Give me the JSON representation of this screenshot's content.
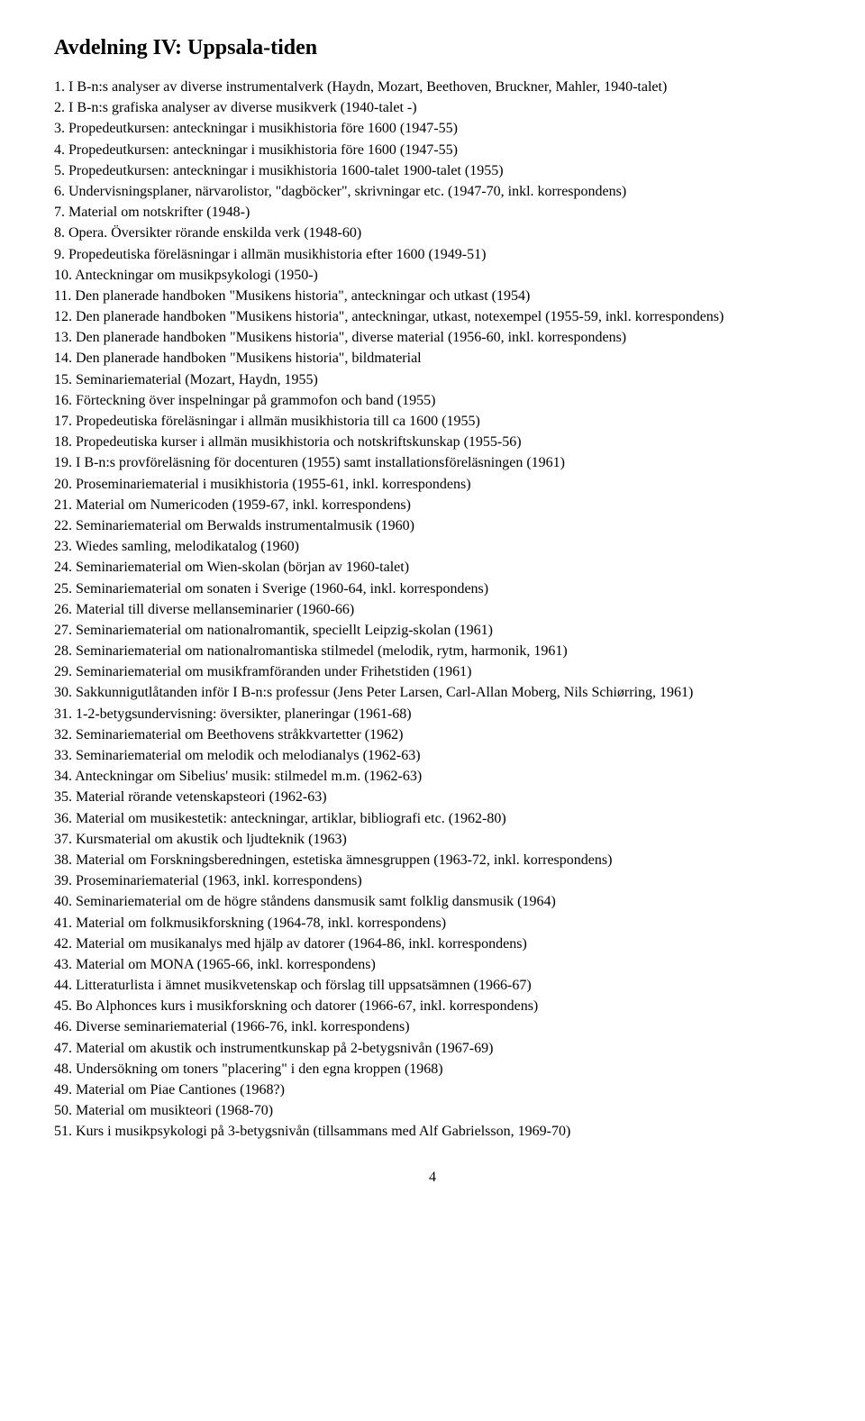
{
  "title": "Avdelning IV: Uppsala-tiden",
  "page_number": "4",
  "items": [
    {
      "num": "1.",
      "text": "I B-n:s analyser av diverse instrumentalverk (Haydn, Mozart, Beethoven, Bruckner, Mahler, 1940-talet)"
    },
    {
      "num": "2.",
      "text": "I B-n:s grafiska analyser av diverse musikverk (1940-talet -)"
    },
    {
      "num": "3.",
      "text": "Propedeutkursen: anteckningar i musikhistoria före 1600 (1947-55)"
    },
    {
      "num": "4.",
      "text": "Propedeutkursen: anteckningar i musikhistoria före 1600 (1947-55)"
    },
    {
      "num": "5.",
      "text": "Propedeutkursen: anteckningar i musikhistoria 1600-talet 1900-talet (1955)"
    },
    {
      "num": "6.",
      "text": "Undervisningsplaner, närvarolistor, \"dagböcker\", skrivningar etc. (1947-70, inkl. korrespondens)"
    },
    {
      "num": "7.",
      "text": "Material om notskrifter (1948-)"
    },
    {
      "num": "8.",
      "text": "Opera. Översikter rörande enskilda verk (1948-60)"
    },
    {
      "num": "9.",
      "text": "Propedeutiska föreläsningar i allmän musikhistoria efter 1600 (1949-51)"
    },
    {
      "num": "10.",
      "text": "Anteckningar om musikpsykologi (1950-)"
    },
    {
      "num": "11.",
      "text": "Den planerade handboken \"Musikens historia\", anteckningar och utkast (1954)"
    },
    {
      "num": "12.",
      "text": "Den planerade handboken \"Musikens historia\", anteckningar, utkast, notexempel (1955-59, inkl. korrespondens)"
    },
    {
      "num": "13.",
      "text": "Den planerade handboken \"Musikens historia\", diverse material (1956-60, inkl. korrespondens)"
    },
    {
      "num": "14.",
      "text": "Den planerade handboken \"Musikens historia\", bildmaterial"
    },
    {
      "num": "15.",
      "text": "Seminariematerial (Mozart, Haydn, 1955)"
    },
    {
      "num": "16.",
      "text": "Förteckning över inspelningar på grammofon och band (1955)"
    },
    {
      "num": "17.",
      "text": "Propedeutiska föreläsningar i allmän musikhistoria till ca 1600 (1955)"
    },
    {
      "num": "18.",
      "text": "Propedeutiska kurser i allmän musikhistoria och notskriftskunskap (1955-56)"
    },
    {
      "num": "19.",
      "text": "I B-n:s provföreläsning för docenturen (1955) samt installationsföreläsningen (1961)"
    },
    {
      "num": "20.",
      "text": "Proseminariematerial i musikhistoria (1955-61, inkl. korrespondens)"
    },
    {
      "num": "21.",
      "text": "Material om Numericoden (1959-67, inkl. korrespondens)"
    },
    {
      "num": "22.",
      "text": "Seminariematerial om Berwalds instrumentalmusik (1960)"
    },
    {
      "num": "23.",
      "text": "Wiedes samling, melodikatalog (1960)"
    },
    {
      "num": "24.",
      "text": "Seminariematerial om Wien-skolan (början av 1960-talet)"
    },
    {
      "num": "25.",
      "text": "Seminariematerial om sonaten i Sverige (1960-64, inkl. korrespondens)"
    },
    {
      "num": "26.",
      "text": "Material till diverse mellanseminarier (1960-66)"
    },
    {
      "num": "27.",
      "text": "Seminariematerial om nationalromantik, speciellt Leipzig-skolan (1961)"
    },
    {
      "num": "28.",
      "text": "Seminariematerial om nationalromantiska stilmedel (melodik, rytm, harmonik, 1961)"
    },
    {
      "num": "29.",
      "text": "Seminariematerial om musikframföranden under Frihetstiden (1961)"
    },
    {
      "num": "30.",
      "text": "Sakkunnigutlåtanden inför I B-n:s professur (Jens Peter Larsen, Carl-Allan Moberg, Nils Schiørring, 1961)"
    },
    {
      "num": "31.",
      "text": "1-2-betygsundervisning: översikter, planeringar (1961-68)"
    },
    {
      "num": "32.",
      "text": "Seminariematerial om Beethovens stråkkvartetter (1962)"
    },
    {
      "num": "33.",
      "text": "Seminariematerial om melodik och melodianalys (1962-63)"
    },
    {
      "num": "34.",
      "text": "Anteckningar om Sibelius' musik: stilmedel m.m. (1962-63)"
    },
    {
      "num": "35.",
      "text": "Material rörande vetenskapsteori (1962-63)"
    },
    {
      "num": "36.",
      "text": "Material om musikestetik: anteckningar, artiklar, bibliografi etc. (1962-80)"
    },
    {
      "num": "37.",
      "text": "Kursmaterial om akustik och ljudteknik (1963)"
    },
    {
      "num": "38.",
      "text": "Material om Forskningsberedningen, estetiska ämnesgruppen (1963-72, inkl. korrespondens)"
    },
    {
      "num": "39.",
      "text": "Proseminariematerial (1963, inkl. korrespondens)"
    },
    {
      "num": "40.",
      "text": "Seminariematerial om de högre ståndens dansmusik samt folklig dansmusik (1964)"
    },
    {
      "num": "41.",
      "text": "Material om folkmusikforskning (1964-78, inkl. korrespondens)"
    },
    {
      "num": "42.",
      "text": "Material om musikanalys med hjälp av datorer (1964-86, inkl. korrespondens)"
    },
    {
      "num": "43.",
      "text": "Material om MONA (1965-66, inkl. korrespondens)"
    },
    {
      "num": "44.",
      "text": "Litteraturlista i ämnet musikvetenskap och förslag till uppsatsämnen (1966-67)"
    },
    {
      "num": "45.",
      "text": "Bo Alphonces kurs i musikforskning och datorer (1966-67, inkl. korrespondens)"
    },
    {
      "num": "46.",
      "text": "Diverse seminariematerial (1966-76, inkl. korrespondens)"
    },
    {
      "num": "47.",
      "text": "Material om akustik och instrumentkunskap på 2-betygsnivån (1967-69)"
    },
    {
      "num": "48.",
      "text": "Undersökning om toners \"placering\" i den egna kroppen (1968)"
    },
    {
      "num": "49.",
      "text": "Material om Piae Cantiones (1968?)"
    },
    {
      "num": "50.",
      "text": "Material om musikteori (1968-70)"
    },
    {
      "num": "51.",
      "text": "Kurs i musikpsykologi på 3-betygsnivån (tillsammans med Alf Gabrielsson, 1969-70)"
    }
  ]
}
